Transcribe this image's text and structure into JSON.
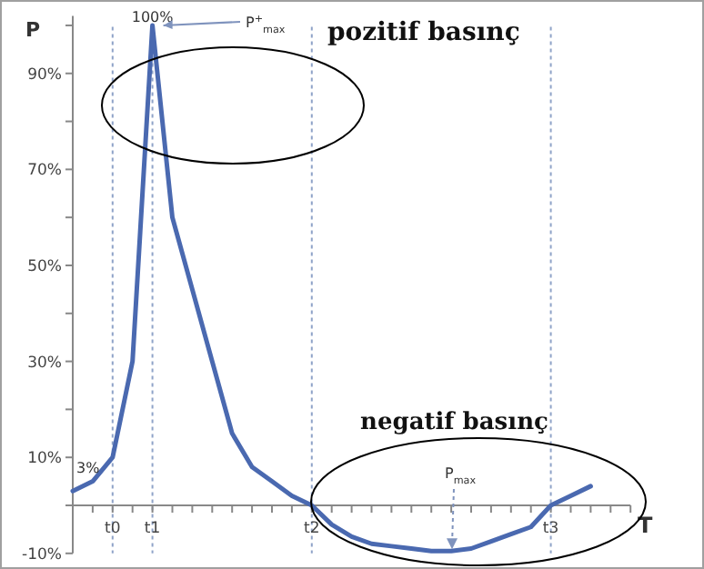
{
  "chart_data": {
    "type": "line",
    "xlabel": "T",
    "ylabel": "P",
    "categories": [
      null,
      null,
      "t0",
      null,
      "t1",
      null,
      null,
      null,
      null,
      null,
      null,
      null,
      "t2",
      null,
      null,
      null,
      null,
      null,
      null,
      null,
      null,
      null,
      null,
      null,
      "t3",
      null,
      null,
      null,
      null
    ],
    "values": [
      3,
      5,
      10,
      30,
      100,
      60,
      45,
      30,
      15,
      8,
      5,
      2,
      0,
      -4,
      -6.5,
      -8,
      -8.5,
      -9,
      -9.5,
      -9.5,
      -9,
      -7.5,
      -6,
      -4.5,
      0,
      2,
      4,
      null,
      null
    ],
    "color": "#4a69b0",
    "ylim": [
      -10,
      102
    ],
    "yticks": [
      {
        "value": -10,
        "label": "-10%"
      },
      {
        "value": 0,
        "label": null
      },
      {
        "value": 10,
        "label": "10%"
      },
      {
        "value": 20,
        "label": null
      },
      {
        "value": 30,
        "label": "30%"
      },
      {
        "value": 40,
        "label": null
      },
      {
        "value": 50,
        "label": "50%"
      },
      {
        "value": 60,
        "label": null
      },
      {
        "value": 70,
        "label": "70%"
      },
      {
        "value": 80,
        "label": null
      },
      {
        "value": 90,
        "label": "90%"
      },
      {
        "value": 100,
        "label": null
      }
    ],
    "ref_lines": [
      {
        "axis": "x",
        "value": "t0",
        "color": "#8fa3c8",
        "line_style": "dotted"
      },
      {
        "axis": "x",
        "value": "t1",
        "color": "#8fa3c8",
        "line_style": "dotted"
      },
      {
        "axis": "x",
        "value": "t2",
        "color": "#8fa3c8",
        "line_style": "dotted"
      },
      {
        "axis": "x",
        "value": "t3",
        "color": "#8fa3c8",
        "line_style": "dotted"
      }
    ],
    "annotations": [
      {
        "text": "100%",
        "x": "t1",
        "y": 100
      },
      {
        "text": "3%",
        "y": 3
      },
      {
        "text": "P$^{+}$$_{max}$",
        "x": "t1",
        "y": 100
      },
      {
        "text": "P$_{max}$",
        "y": -9.5
      },
      "pozitif basınç",
      "negatif basınç"
    ],
    "grid": false,
    "marker": "none",
    "line_style": "solid"
  }
}
